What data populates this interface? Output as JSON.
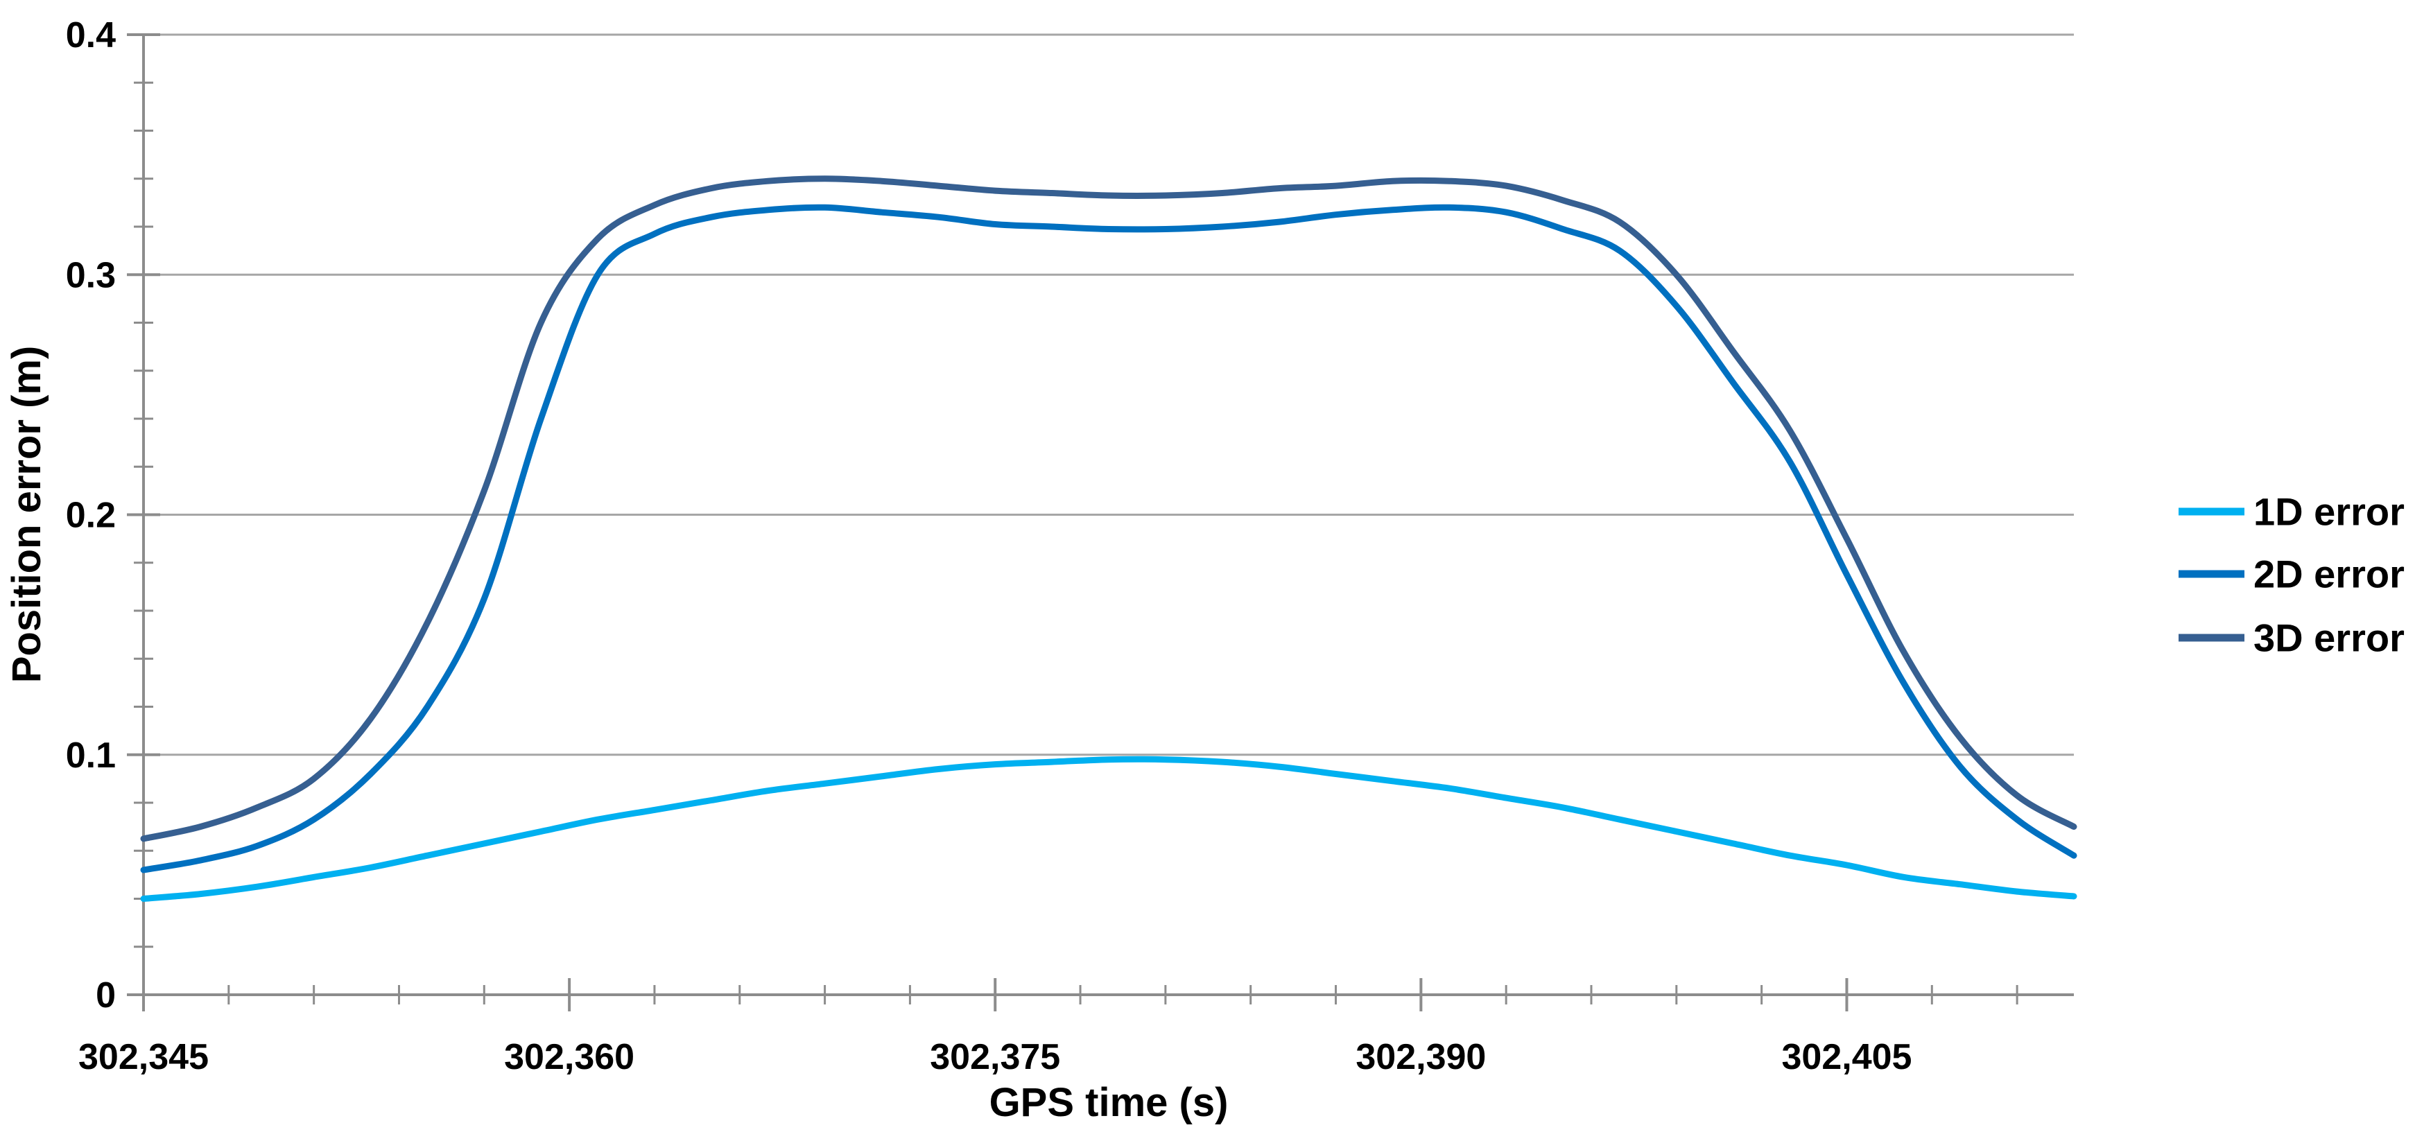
{
  "chart_data": {
    "type": "line",
    "title": "",
    "xlabel": "GPS time (s)",
    "ylabel": "Position error (m)",
    "xlim": [
      302345,
      302413
    ],
    "ylim": [
      0,
      0.4
    ],
    "grid": "horizontal-major-only",
    "legend_position": "right-middle",
    "background_color": "#FFFFFF",
    "axis_color": "#8C8C8C",
    "gridline_color": "#A6A6A6",
    "tick_color": "#8C8C8C",
    "text_color": "#000000",
    "x_major_ticks": [
      302345,
      302360,
      302375,
      302390,
      302405
    ],
    "x_major_tick_labels": [
      "302,345",
      "302,360",
      "302,375",
      "302,390",
      "302,405"
    ],
    "x_minor_tick_step": 3,
    "y_major_ticks": [
      0,
      0.1,
      0.2,
      0.3,
      0.4
    ],
    "y_tick_labels": [
      "0",
      "0.1",
      "0.2",
      "0.3",
      "0.4"
    ],
    "y_minor_tick_step": 0.02,
    "x": [
      302345,
      302347,
      302349,
      302351,
      302353,
      302355,
      302357,
      302359,
      302361,
      302363,
      302365,
      302367,
      302369,
      302371,
      302373,
      302375,
      302377,
      302379,
      302381,
      302383,
      302385,
      302387,
      302389,
      302391,
      302393,
      302395,
      302397,
      302399,
      302401,
      302403,
      302405,
      302407,
      302409,
      302411,
      302413
    ],
    "series": [
      {
        "name": "1D error",
        "color": "#00B0F0",
        "values": [
          0.04,
          0.042,
          0.045,
          0.049,
          0.053,
          0.058,
          0.063,
          0.068,
          0.073,
          0.077,
          0.081,
          0.085,
          0.088,
          0.091,
          0.094,
          0.096,
          0.097,
          0.098,
          0.098,
          0.097,
          0.095,
          0.092,
          0.089,
          0.086,
          0.082,
          0.078,
          0.073,
          0.068,
          0.063,
          0.058,
          0.054,
          0.049,
          0.046,
          0.043,
          0.041
        ]
      },
      {
        "name": "2D error",
        "color": "#0070C0",
        "values": [
          0.052,
          0.056,
          0.062,
          0.073,
          0.092,
          0.12,
          0.165,
          0.24,
          0.3,
          0.317,
          0.324,
          0.327,
          0.328,
          0.326,
          0.324,
          0.321,
          0.32,
          0.319,
          0.319,
          0.32,
          0.322,
          0.325,
          0.327,
          0.328,
          0.326,
          0.319,
          0.31,
          0.287,
          0.255,
          0.222,
          0.175,
          0.13,
          0.095,
          0.073,
          0.058
        ]
      },
      {
        "name": "3D error",
        "color": "#365F91",
        "values": [
          0.065,
          0.07,
          0.078,
          0.09,
          0.115,
          0.155,
          0.21,
          0.28,
          0.315,
          0.329,
          0.336,
          0.339,
          0.34,
          0.339,
          0.337,
          0.335,
          0.334,
          0.333,
          0.333,
          0.334,
          0.336,
          0.337,
          0.339,
          0.339,
          0.337,
          0.331,
          0.322,
          0.3,
          0.268,
          0.235,
          0.19,
          0.143,
          0.107,
          0.083,
          0.07
        ]
      }
    ]
  }
}
